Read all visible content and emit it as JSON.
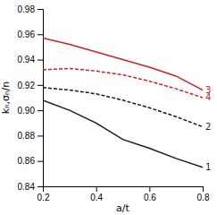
{
  "chart_data": {
    "type": "line",
    "xlabel": "a/t",
    "ylabel": "kₙ,σₙ/n",
    "x": [
      0.2,
      0.3,
      0.4,
      0.5,
      0.6,
      0.7,
      0.8
    ],
    "xlim": [
      0.2,
      0.8
    ],
    "ylim": [
      0.84,
      0.98
    ],
    "xticks": [
      0.2,
      0.4,
      0.6,
      0.8
    ],
    "yticks": [
      0.84,
      0.86,
      0.88,
      {
        "value": 0.9,
        "label": "0.90"
      },
      0.92,
      0.94,
      0.96,
      0.98
    ],
    "series": [
      {
        "name": "1",
        "color": "#1a1a1a",
        "line_style": "solid",
        "values": [
          0.908,
          0.9,
          0.89,
          0.877,
          0.87,
          0.862,
          0.855
        ]
      },
      {
        "name": "2",
        "color": "#1a1a1a",
        "line_style": "dashed",
        "values": [
          0.918,
          0.916,
          0.913,
          0.908,
          0.902,
          0.895,
          0.887
        ]
      },
      {
        "name": "3",
        "color": "#cc2222",
        "line_style": "solid",
        "values": [
          0.957,
          0.952,
          0.946,
          0.94,
          0.934,
          0.927,
          0.916
        ]
      },
      {
        "name": "4",
        "color": "#cc2222",
        "line_style": "dashed",
        "values": [
          0.932,
          0.933,
          0.931,
          0.928,
          0.923,
          0.917,
          0.91
        ]
      }
    ]
  }
}
